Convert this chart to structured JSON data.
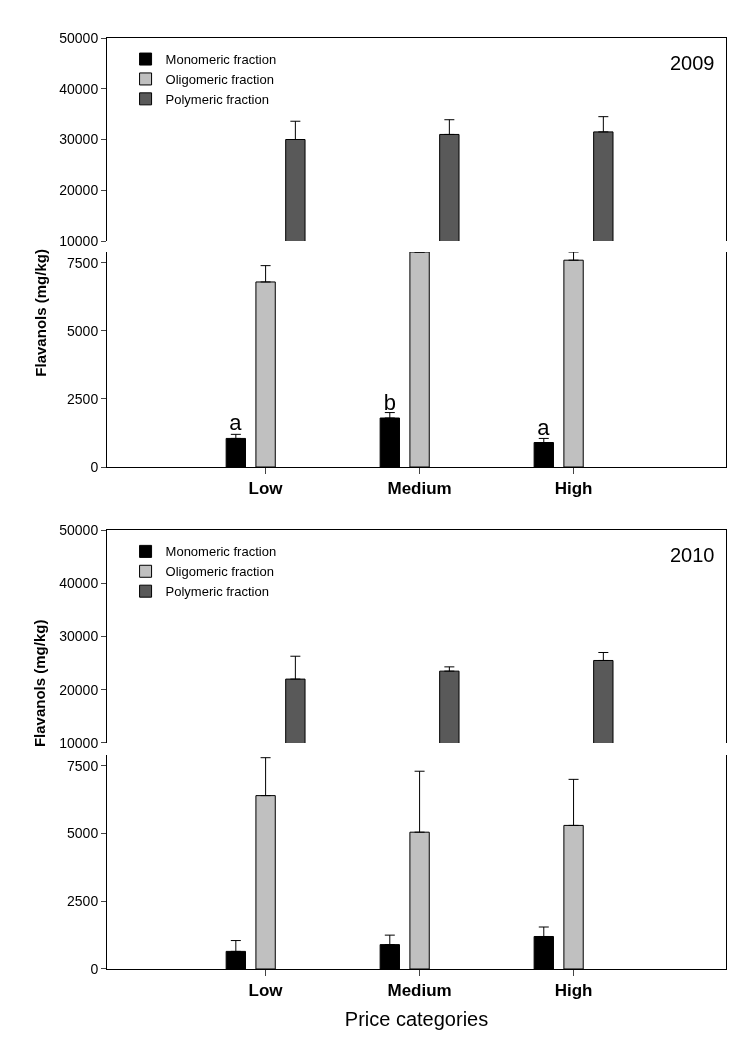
{
  "chart_data": [
    {
      "type": "bar",
      "categories": [
        null,
        null,
        null
      ],
      "ylim": [
        10000,
        50000
      ],
      "yticks": [
        10000,
        20000,
        30000,
        40000,
        50000
      ],
      "tick_labels": "y",
      "legend": "top left",
      "annotations": [
        "2009"
      ],
      "series": [
        {
          "name": "Monomeric fraction",
          "color": "#000000",
          "values": [
            null,
            null,
            null
          ]
        },
        {
          "name": "Oligomeric fraction",
          "color": "#c0c0c0",
          "values": [
            null,
            null,
            null
          ]
        },
        {
          "name": "Polymeric fraction",
          "color": "#595959",
          "values": [
            30000,
            31000,
            31500
          ],
          "errors": [
            [
              30000,
              33600
            ],
            [
              31000,
              33900
            ],
            [
              31500,
              34500
            ]
          ]
        }
      ]
    },
    {
      "type": "bar",
      "categories": [
        "Low",
        "Medium",
        "High"
      ],
      "ylim": [
        0,
        7900
      ],
      "yticks": [
        0,
        2500,
        5000,
        7500
      ],
      "ylabel": "Flavanols (mg/kg)",
      "legend": false,
      "series": [
        {
          "color": "#000000",
          "values": [
            1050,
            1800,
            900
          ],
          "errors": [
            [
              1050,
              1200
            ],
            [
              1800,
              2000
            ],
            [
              900,
              1050
            ]
          ],
          "value_labels": [
            "a",
            "b",
            "a"
          ]
        },
        {
          "color": "#c0c0c0",
          "values": [
            6800,
            7900,
            7600
          ],
          "errors": [
            [
              6800,
              7400
            ],
            null,
            [
              7600,
              7900
            ]
          ]
        },
        {
          "color": "#595959",
          "values": [
            null,
            null,
            null
          ]
        }
      ]
    },
    {
      "type": "bar",
      "categories": [
        null,
        null,
        null
      ],
      "ylim": [
        10000,
        50000
      ],
      "yticks": [
        10000,
        20000,
        30000,
        40000,
        50000
      ],
      "tick_labels": "y",
      "legend": "top left",
      "annotations": [
        "2010"
      ],
      "series": [
        {
          "name": "Monomeric fraction",
          "color": "#000000",
          "values": [
            null,
            null,
            null
          ]
        },
        {
          "name": "Oligomeric fraction",
          "color": "#c0c0c0",
          "values": [
            null,
            null,
            null
          ]
        },
        {
          "name": "Polymeric fraction",
          "color": "#595959",
          "values": [
            22000,
            23500,
            25500
          ],
          "errors": [
            [
              22000,
              26300
            ],
            [
              23500,
              24300
            ],
            [
              25500,
              27000
            ]
          ]
        }
      ]
    },
    {
      "type": "bar",
      "categories": [
        "Low",
        "Medium",
        "High"
      ],
      "ylim": [
        0,
        7900
      ],
      "yticks": [
        0,
        2500,
        5000,
        7500
      ],
      "ylabel": "Flavanols (mg/kg)",
      "xlabel": "Price categories",
      "legend": false,
      "series": [
        {
          "color": "#000000",
          "values": [
            650,
            900,
            1200
          ],
          "errors": [
            [
              650,
              1050
            ],
            [
              900,
              1250
            ],
            [
              1200,
              1550
            ]
          ]
        },
        {
          "color": "#c0c0c0",
          "values": [
            6400,
            5050,
            5300
          ],
          "errors": [
            [
              6400,
              7800
            ],
            [
              5050,
              7300
            ],
            [
              5300,
              7000
            ]
          ]
        },
        {
          "color": "#595959",
          "values": [
            null,
            null,
            null
          ]
        }
      ]
    }
  ]
}
